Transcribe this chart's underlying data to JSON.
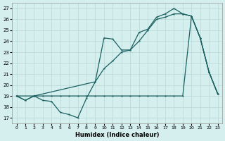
{
  "xlabel": "Humidex (Indice chaleur)",
  "background_color": "#d5efee",
  "grid_color": "#b8d8d6",
  "line_color": "#1a6060",
  "xlim": [
    -0.5,
    23.5
  ],
  "ylim": [
    16.5,
    27.5
  ],
  "xticks": [
    0,
    1,
    2,
    3,
    4,
    5,
    6,
    7,
    8,
    9,
    10,
    11,
    12,
    13,
    14,
    15,
    16,
    17,
    18,
    19,
    20,
    21,
    22,
    23
  ],
  "yticks": [
    17,
    18,
    19,
    20,
    21,
    22,
    23,
    24,
    25,
    26,
    27
  ],
  "curve_zigzag_x": [
    0,
    1,
    2,
    3,
    4,
    5,
    6,
    7,
    8,
    9,
    10,
    11,
    12,
    13,
    14,
    15,
    16,
    17,
    18,
    19,
    20,
    21,
    22,
    23
  ],
  "curve_zigzag_y": [
    19.0,
    18.6,
    19.0,
    18.6,
    18.5,
    17.5,
    17.3,
    17.0,
    18.8,
    20.3,
    21.5,
    22.2,
    23.0,
    23.2,
    24.0,
    25.0,
    26.0,
    26.2,
    26.5,
    26.5,
    26.3,
    24.3,
    21.2,
    19.2
  ],
  "curve_flat_x": [
    0,
    1,
    2,
    3,
    4,
    5,
    6,
    7,
    8,
    9,
    10,
    11,
    12,
    13,
    14,
    15,
    16,
    17,
    18,
    19,
    20,
    21,
    22,
    23
  ],
  "curve_flat_y": [
    19.0,
    18.6,
    19.0,
    19.0,
    19.0,
    19.0,
    19.0,
    19.0,
    19.0,
    19.0,
    19.0,
    19.0,
    19.0,
    19.0,
    19.0,
    19.0,
    19.0,
    19.0,
    19.0,
    19.0,
    26.3,
    24.3,
    21.2,
    19.2
  ],
  "curve_upper_x": [
    0,
    2,
    9,
    10,
    11,
    12,
    13,
    14,
    15,
    16,
    17,
    18,
    19,
    20,
    21,
    22,
    23
  ],
  "curve_upper_y": [
    19.0,
    19.0,
    20.3,
    24.3,
    24.2,
    23.2,
    23.2,
    24.8,
    25.1,
    26.2,
    26.5,
    27.0,
    26.5,
    26.3,
    24.3,
    21.2,
    19.2
  ]
}
